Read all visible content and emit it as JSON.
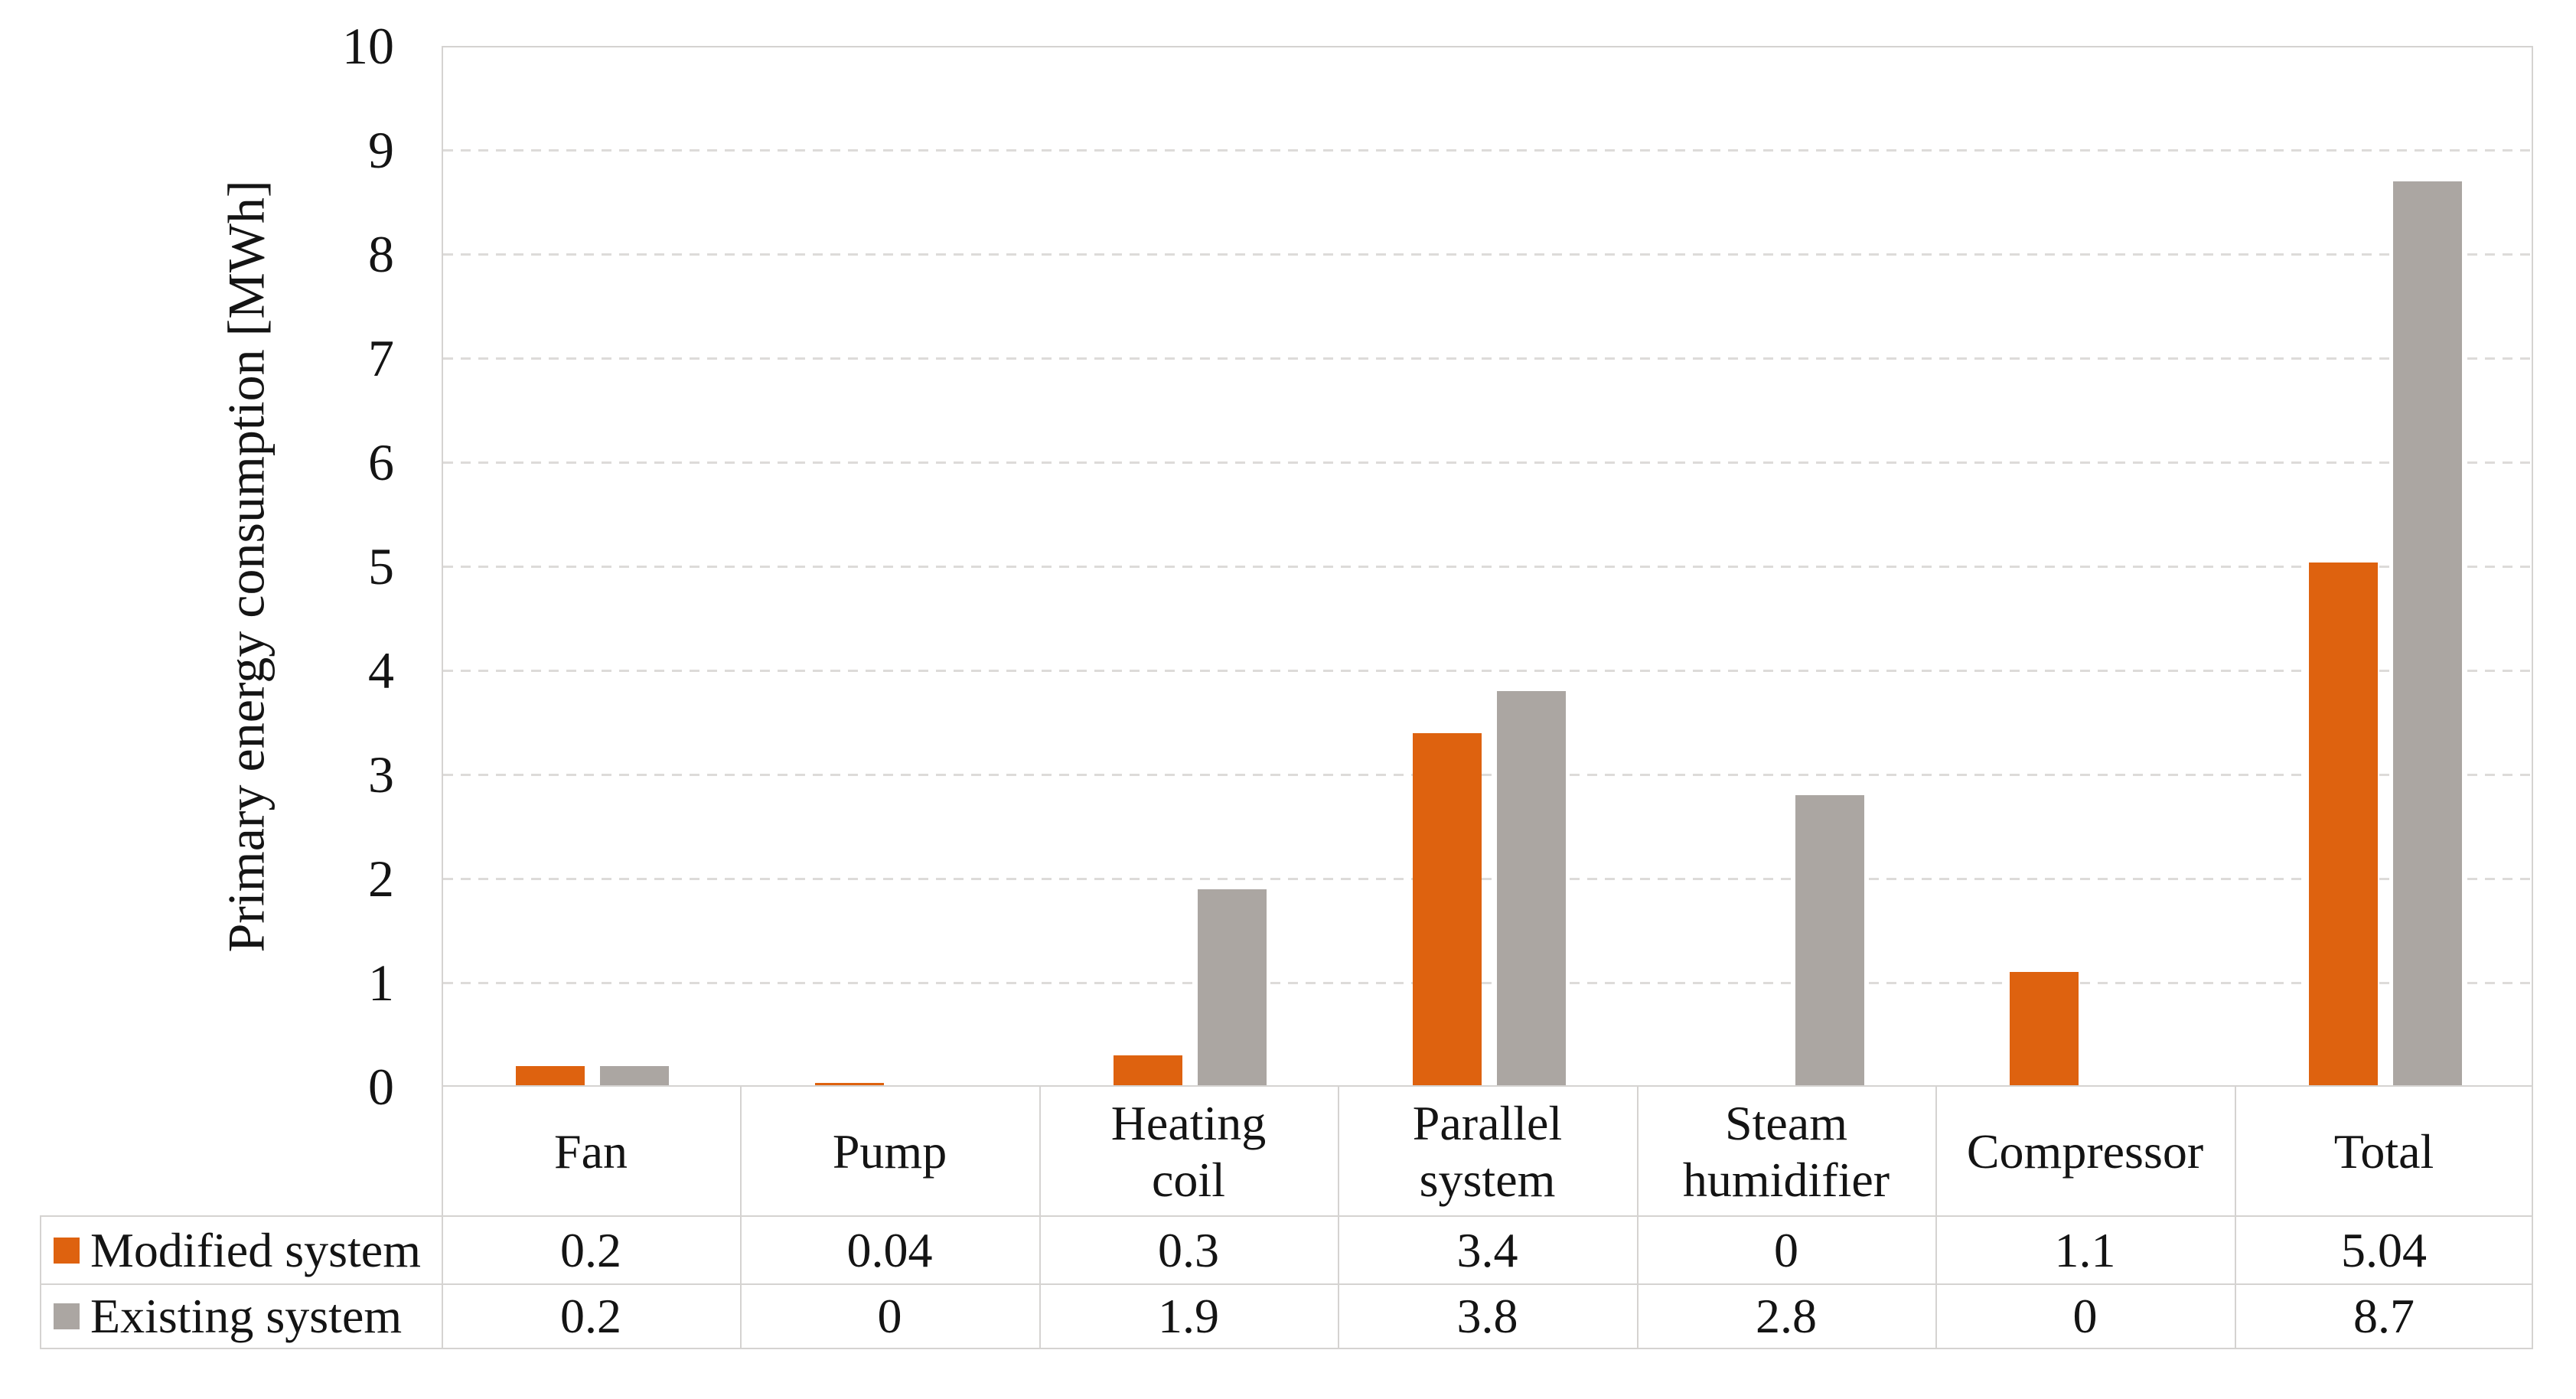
{
  "chart_data": {
    "type": "bar",
    "title": "",
    "ylabel": "Primary energy consumption [MWh]",
    "categories": [
      "Fan",
      "Pump",
      "Heating coil",
      "Parallel system",
      "Steam humidifier",
      "Compressor",
      "Total"
    ],
    "series": [
      {
        "name": "Modified system",
        "color": "#de620f",
        "values": [
          0.2,
          0.04,
          0.3,
          3.4,
          0,
          1.1,
          5.04
        ],
        "labels": [
          "0.2",
          "0.04",
          "0.3",
          "3.4",
          "0",
          "1.1",
          "5.04"
        ]
      },
      {
        "name": "Existing system",
        "color": "#aba6a2",
        "values": [
          0.2,
          0,
          1.9,
          3.8,
          2.8,
          0,
          8.7
        ],
        "labels": [
          "0.2",
          "0",
          "1.9",
          "3.8",
          "2.8",
          "0",
          "8.7"
        ]
      }
    ],
    "ylim": [
      0,
      10
    ],
    "yticks": [
      0,
      1,
      2,
      3,
      4,
      5,
      6,
      7,
      8,
      9,
      10
    ],
    "grid": "horizontal-dashed",
    "legend_position": "table-left-column"
  },
  "colors": {
    "grid": "#dddbd9",
    "border": "#d5d3d1",
    "text": "#141414",
    "background": "#ffffff"
  }
}
